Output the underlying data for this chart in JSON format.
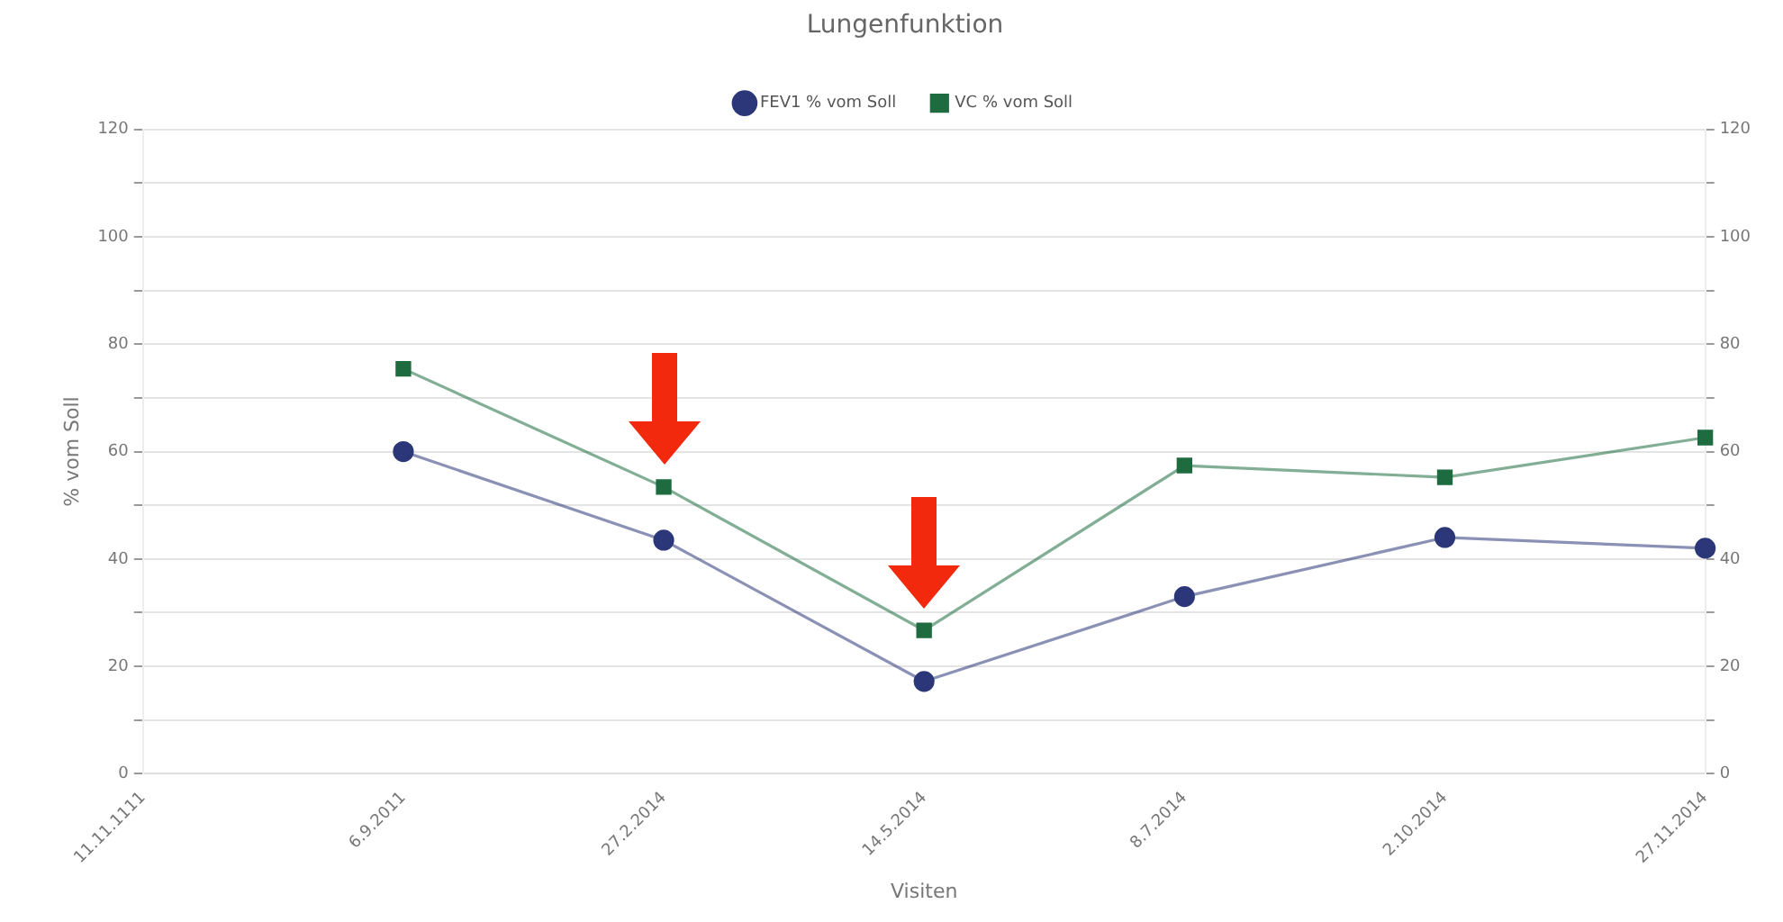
{
  "chart_data": {
    "type": "line",
    "title": "Lungenfunktion",
    "xlabel": "Visiten",
    "ylabel": "% vom Soll",
    "categories": [
      "11.11.1111",
      "6.9.2011",
      "27.2.2014",
      "14.5.2014",
      "8.7.2014",
      "2.10.2014",
      "27.11.2014"
    ],
    "series": [
      {
        "name": "FEV1 % vom Soll",
        "color": "#2b3778",
        "marker": "circle",
        "values": [
          null,
          60,
          43.5,
          17.2,
          33,
          44,
          42
        ]
      },
      {
        "name": "VC % vom Soll",
        "color": "#1e6b40",
        "marker": "square",
        "values": [
          null,
          75.4,
          53.4,
          26.7,
          57.4,
          55.2,
          62.6
        ]
      }
    ],
    "ylim": [
      0,
      120
    ],
    "yticks": [
      0,
      {
        "value": 10,
        "label": null
      },
      20,
      {
        "value": 30,
        "label": null
      },
      40,
      {
        "value": 50,
        "label": null
      },
      60,
      {
        "value": 70,
        "label": null
      },
      80,
      {
        "value": 90,
        "label": null
      },
      100,
      {
        "value": 110,
        "label": null
      },
      120
    ],
    "y2lim": [
      0,
      120
    ],
    "y2ticks": [
      0,
      {
        "value": 10,
        "label": null
      },
      20,
      {
        "value": 30,
        "label": null
      },
      40,
      {
        "value": 50,
        "label": null
      },
      60,
      {
        "value": 70,
        "label": null
      },
      80,
      {
        "value": 90,
        "label": null
      },
      100,
      {
        "value": 110,
        "label": null
      },
      120
    ],
    "grid": "y",
    "legend": "top"
  }
}
